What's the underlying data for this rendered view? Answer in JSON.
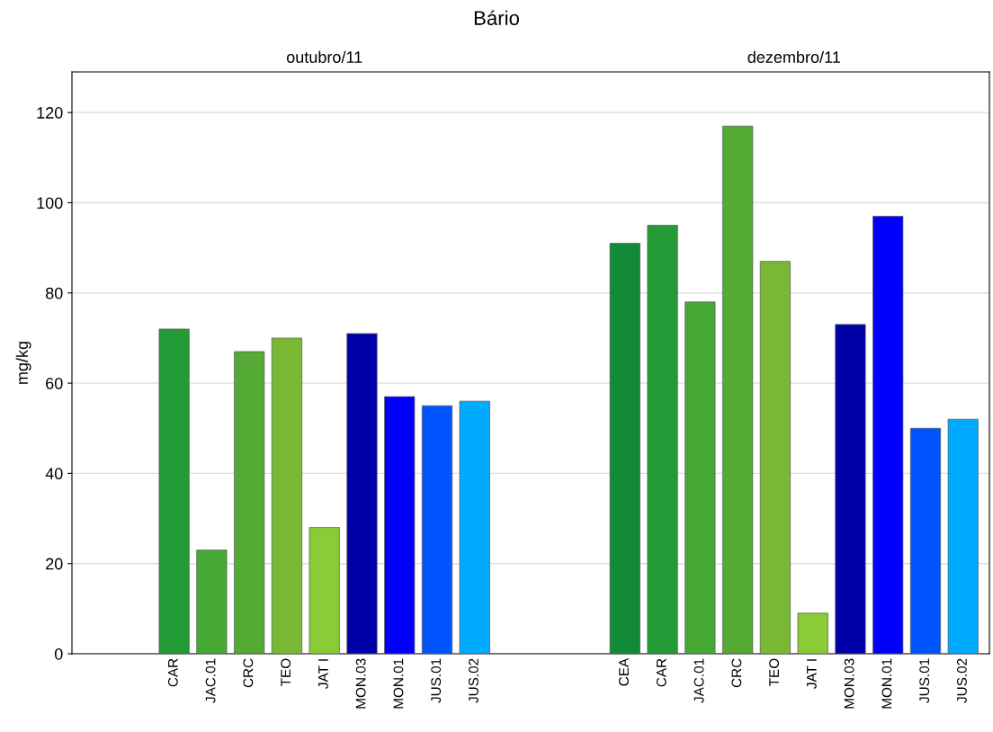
{
  "chart_data": {
    "type": "bar",
    "title": "Bário",
    "ylabel": "mg/kg",
    "annotations": [
      "outubro/11",
      "dezembro/11"
    ],
    "categories": [
      null,
      null,
      "CAR",
      "JAC.01",
      "CRC",
      "TEO",
      "JAT I",
      "MON.03",
      "MON.01",
      "JUS.01",
      "JUS.02",
      null,
      null,
      null,
      "CEA",
      "CAR",
      "JAC.01",
      "CRC",
      "TEO",
      "JAT I",
      "MON.03",
      "MON.01",
      "JUS.01",
      "JUS.02"
    ],
    "values": [
      null,
      null,
      72,
      23,
      67,
      70,
      28,
      71,
      57,
      55,
      56,
      null,
      null,
      null,
      91,
      95,
      78,
      117,
      87,
      9,
      73,
      97,
      50,
      52
    ],
    "colors": [
      "#239b37",
      "#239b37",
      "#239b37",
      "#46a936",
      "#55a935",
      "#79b833",
      "#8acc35",
      "#0000a8",
      "#0000ff",
      "#0055ff",
      "#00aaff",
      "#239b37",
      "#239b37",
      "#239b37",
      "#138a38",
      "#239b37",
      "#46a936",
      "#55a935",
      "#79b833",
      "#8acc35",
      "#0000a8",
      "#0000ff",
      "#0055ff",
      "#00aaff"
    ],
    "ylim": [
      0,
      129
    ],
    "yticks": [
      0,
      20,
      40,
      60,
      80,
      100,
      120
    ],
    "grid": "y"
  }
}
